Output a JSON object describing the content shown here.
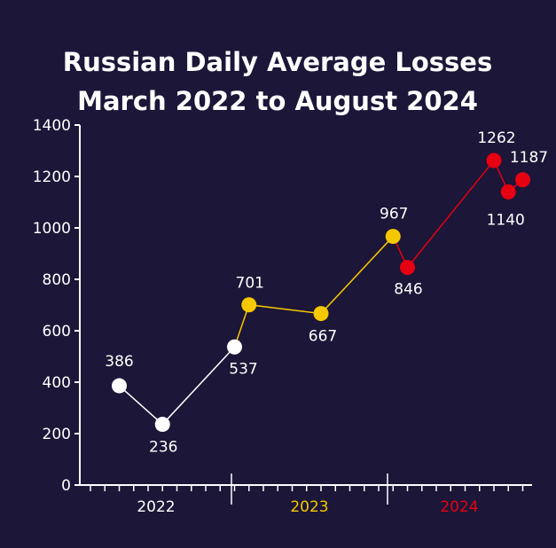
{
  "chart_data": {
    "type": "line",
    "title_lines": [
      "Russian Daily Average Losses",
      "March 2022 to August 2024"
    ],
    "ylim": [
      0,
      1400
    ],
    "y_ticks": [
      0,
      200,
      400,
      600,
      800,
      1000,
      1200,
      1400
    ],
    "grid": false,
    "x_axis_groups": [
      {
        "label": "2022",
        "color": "#ffffff"
      },
      {
        "label": "2023",
        "color": "#f5c800"
      },
      {
        "label": "2024",
        "color": "#e60012"
      }
    ],
    "series": [
      {
        "color": "#ffffff",
        "points": [
          {
            "x": "2022-03",
            "y": 386,
            "label": "386",
            "label_pos": "above"
          },
          {
            "x": "2022-06",
            "y": 236,
            "label": "236",
            "label_pos": "below"
          },
          {
            "x": "2022-11",
            "y": 537,
            "label": "537",
            "label_pos": "below"
          }
        ]
      },
      {
        "color": "#f5c800",
        "points": [
          {
            "x": "2022-11",
            "y": 537,
            "label": null
          },
          {
            "x": "2022-12",
            "y": 701,
            "label": "701",
            "label_pos": "above"
          },
          {
            "x": "2023-05",
            "y": 667,
            "label": "667",
            "label_pos": "below"
          },
          {
            "x": "2023-10",
            "y": 967,
            "label": "967",
            "label_pos": "above"
          }
        ]
      },
      {
        "color": "#e60012",
        "points": [
          {
            "x": "2023-10",
            "y": 967,
            "label": null
          },
          {
            "x": "2023-11",
            "y": 846,
            "label": "846",
            "label_pos": "below"
          },
          {
            "x": "2024-05",
            "y": 1262,
            "label": "1262",
            "label_pos": "above"
          },
          {
            "x": "2024-06",
            "y": 1140,
            "label": "1140",
            "label_pos": "below"
          },
          {
            "x": "2024-07",
            "y": 1187,
            "label": "1187",
            "label_pos": "above"
          }
        ]
      }
    ]
  },
  "colors": {
    "background": "#1c1638",
    "axis": "#ffffff",
    "text": "#ffffff"
  }
}
